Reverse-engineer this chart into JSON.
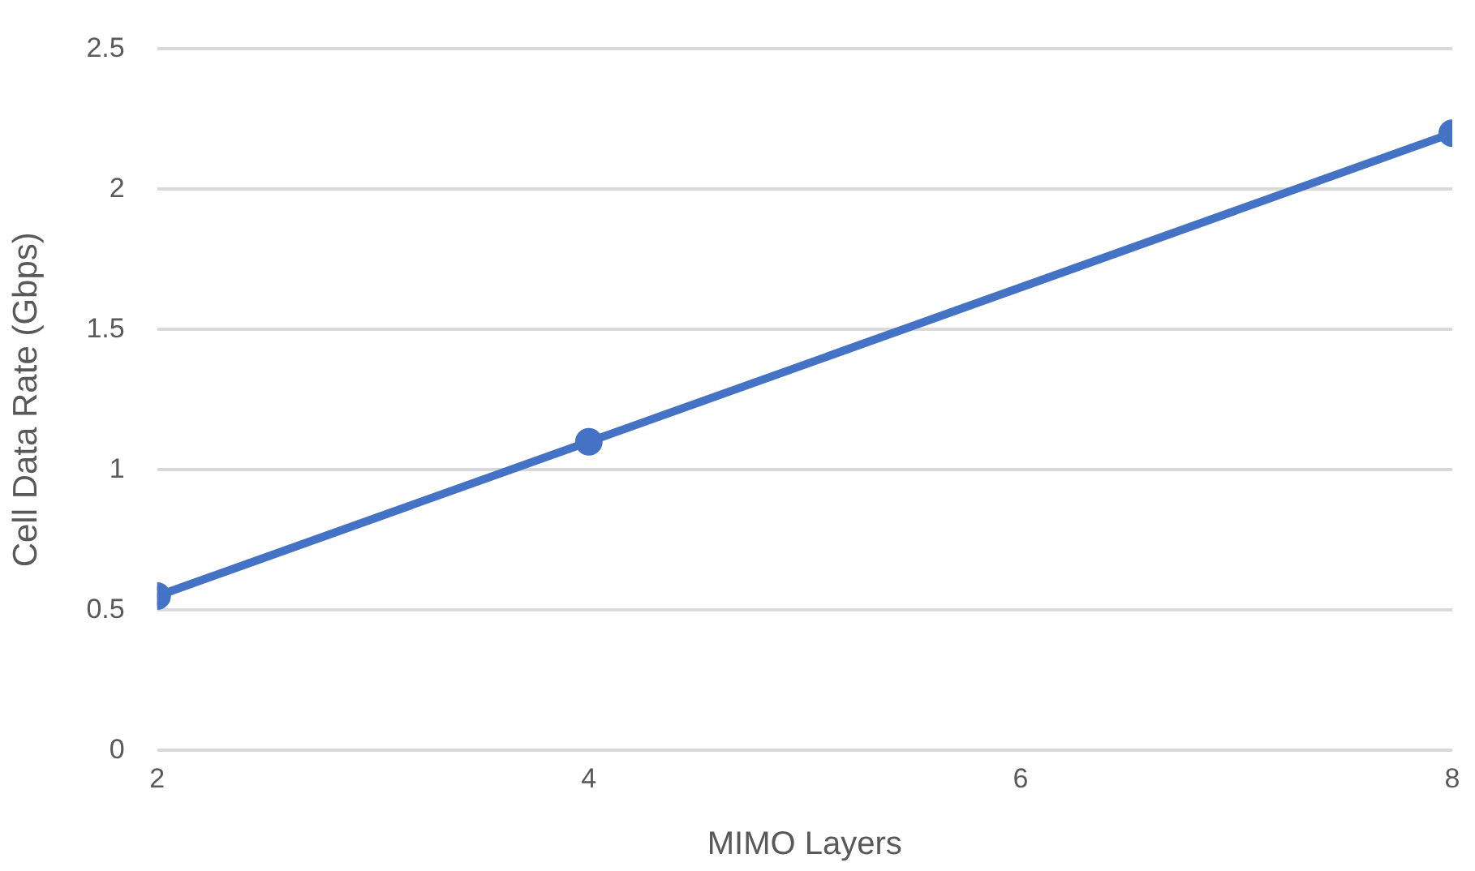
{
  "chart_data": {
    "type": "line",
    "xlabel": "MIMO Layers",
    "ylabel": "Cell Data Rate (Gbps)",
    "x": [
      2,
      4,
      8
    ],
    "series": [
      {
        "color": "#4472c4",
        "values": [
          0.55,
          1.1,
          2.2
        ]
      }
    ],
    "xlim": [
      2,
      8
    ],
    "xticks": [
      2,
      4,
      6,
      8
    ],
    "ylim": [
      0,
      2.5
    ],
    "yticks": [
      0,
      0.5,
      1,
      1.5,
      2,
      2.5
    ],
    "grid": "y",
    "legend": false,
    "marker": "circle",
    "line_style": "solid"
  }
}
